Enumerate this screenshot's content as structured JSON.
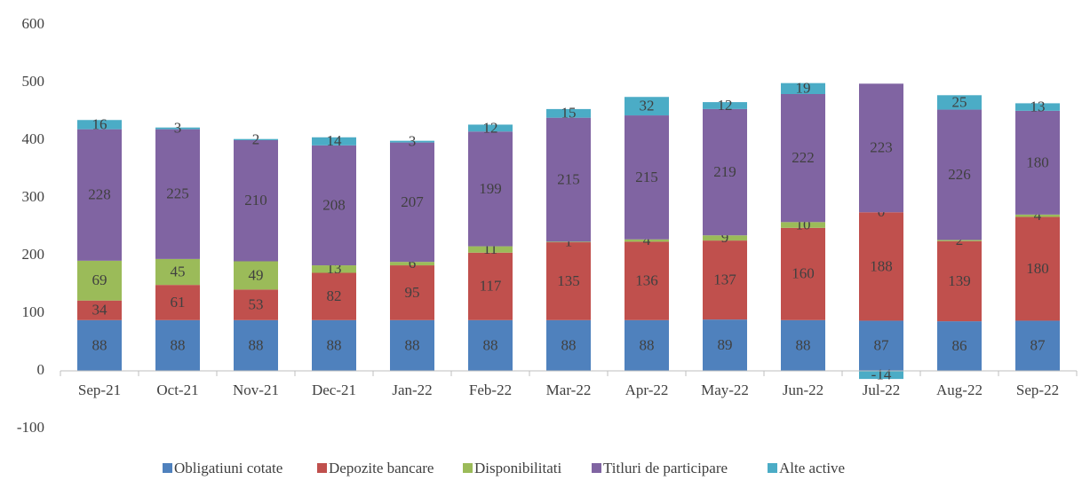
{
  "chart_data": {
    "type": "stacked_bar",
    "categories": [
      "Sep-21",
      "Oct-21",
      "Nov-21",
      "Dec-21",
      "Jan-22",
      "Feb-22",
      "Mar-22",
      "Apr-22",
      "May-22",
      "Jun-22",
      "Jul-22",
      "Aug-22",
      "Sep-22"
    ],
    "series": [
      {
        "name": "Obligatiuni cotate",
        "color": "#4f81bd",
        "values": [
          88,
          88,
          88,
          88,
          88,
          88,
          88,
          88,
          89,
          88,
          87,
          86,
          87
        ]
      },
      {
        "name": "Depozite bancare",
        "color": "#c0504d",
        "values": [
          34,
          61,
          53,
          82,
          95,
          117,
          135,
          136,
          137,
          160,
          188,
          139,
          180
        ]
      },
      {
        "name": "Disponibilitati",
        "color": "#9bbb59",
        "values": [
          69,
          45,
          49,
          13,
          6,
          11,
          1,
          4,
          9,
          10,
          0,
          2,
          4
        ]
      },
      {
        "name": "Titluri de participare",
        "color": "#8064a2",
        "values": [
          228,
          225,
          210,
          208,
          207,
          199,
          215,
          215,
          219,
          222,
          223,
          226,
          180
        ]
      },
      {
        "name": "Alte active",
        "color": "#4bacc6",
        "values": [
          16,
          3,
          2,
          14,
          3,
          12,
          15,
          32,
          12,
          19,
          -14,
          25,
          13
        ]
      }
    ],
    "ylim": [
      -100,
      600
    ],
    "yticks": [
      -100,
      0,
      100,
      200,
      300,
      400,
      500,
      600
    ],
    "grid": false,
    "legend": "bottom"
  }
}
